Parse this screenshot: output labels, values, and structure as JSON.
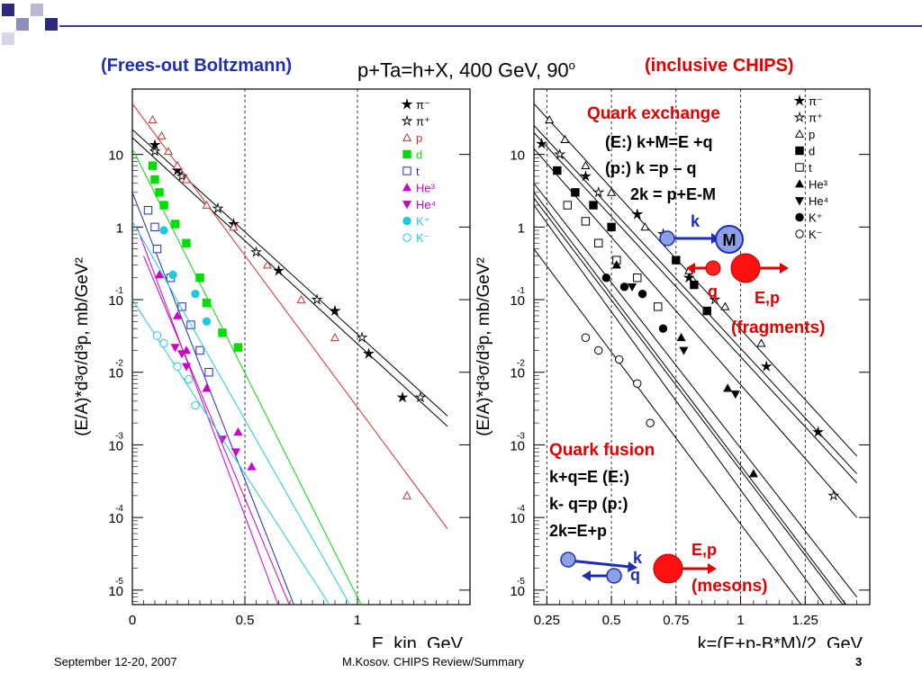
{
  "slide": {
    "title_left": "(Frees-out Boltzmann)",
    "title_mid": "p+Ta=h+X, 400 GeV, 90",
    "title_mid_sup": "o",
    "title_right": "(inclusive CHIPS)",
    "footer_date": "September 12-20, 2007",
    "footer_center": "M.Kosov. CHIPS Review/Summary",
    "page": "3",
    "colors": {
      "accent_blue": "#1f2fb4",
      "accent_red": "#e00000",
      "deco": "#3a3a8c"
    }
  },
  "chart_data": [
    {
      "type": "scatter",
      "ylabel": "(E/A)*d³σ/d³p, mb/GeV²",
      "xlabel": "E_kin, GeV",
      "xlim": [
        0,
        1.5
      ],
      "ylim_log10": [
        -5.2,
        1.9
      ],
      "x_ticks": [
        {
          "v": 0,
          "t": "0"
        },
        {
          "v": 0.5,
          "t": "0.5"
        },
        {
          "v": 1,
          "t": "1"
        }
      ],
      "y_ticks": [
        {
          "e": 1,
          "base": "10",
          "exp": ""
        },
        {
          "e": 0,
          "base": "1",
          "exp": ""
        },
        {
          "e": -1,
          "base": "10",
          "exp": "-1"
        },
        {
          "e": -2,
          "base": "10",
          "exp": "-2"
        },
        {
          "e": -3,
          "base": "10",
          "exp": "-3"
        },
        {
          "e": -4,
          "base": "10",
          "exp": "-4"
        },
        {
          "e": -5,
          "base": "10",
          "exp": "-5"
        }
      ],
      "scale": "log-y",
      "grid": "dashed vertical at 0.5 and 1",
      "legend_position": "top-right",
      "series": [
        {
          "name": "π⁻",
          "marker": "star-filled",
          "color": "#000000",
          "points": [
            [
              0.1,
              13.5
            ],
            [
              0.2,
              6
            ],
            [
              0.45,
              1.1
            ],
            [
              0.65,
              0.25
            ],
            [
              0.9,
              0.07
            ],
            [
              1.05,
              0.018
            ],
            [
              1.2,
              0.0045
            ]
          ],
          "fit": [
            [
              0,
              22
            ],
            [
              1.4,
              0.0025
            ]
          ]
        },
        {
          "name": "π⁺",
          "marker": "star-open",
          "color": "#000000",
          "points": [
            [
              0.1,
              11
            ],
            [
              0.22,
              5
            ],
            [
              0.38,
              1.8
            ],
            [
              0.55,
              0.45
            ],
            [
              0.82,
              0.1
            ],
            [
              1.02,
              0.03
            ],
            [
              1.28,
              0.0045
            ]
          ],
          "fit": [
            [
              0,
              17
            ],
            [
              1.4,
              0.0018
            ]
          ]
        },
        {
          "name": "p",
          "marker": "triangle-open",
          "color": "#c83232",
          "points": [
            [
              0.09,
              30
            ],
            [
              0.13,
              18
            ],
            [
              0.16,
              11
            ],
            [
              0.2,
              7
            ],
            [
              0.24,
              4.5
            ],
            [
              0.33,
              2
            ],
            [
              0.45,
              1
            ],
            [
              0.6,
              0.3
            ],
            [
              0.75,
              0.1
            ],
            [
              0.9,
              0.03
            ],
            [
              1.22,
              0.0002
            ]
          ],
          "fit": [
            [
              0,
              50
            ],
            [
              1.4,
              7e-05
            ]
          ]
        },
        {
          "name": "d",
          "marker": "square-filled",
          "color": "#00dd00",
          "points": [
            [
              0.09,
              7
            ],
            [
              0.1,
              4.5
            ],
            [
              0.12,
              3
            ],
            [
              0.14,
              2
            ],
            [
              0.19,
              1.1
            ],
            [
              0.24,
              0.6
            ],
            [
              0.3,
              0.2
            ],
            [
              0.33,
              0.09
            ],
            [
              0.4,
              0.035
            ],
            [
              0.47,
              0.022
            ]
          ],
          "fit": [
            [
              0,
              12
            ],
            [
              1.02,
              6e-06
            ]
          ]
        },
        {
          "name": "t",
          "marker": "square-open",
          "color": "#1f2fb4",
          "points": [
            [
              0.07,
              1.7
            ],
            [
              0.1,
              1
            ],
            [
              0.11,
              0.5
            ],
            [
              0.17,
              0.2
            ],
            [
              0.22,
              0.08
            ],
            [
              0.26,
              0.045
            ],
            [
              0.3,
              0.02
            ],
            [
              0.34,
              0.01
            ]
          ],
          "fit": [
            [
              0,
              3
            ],
            [
              0.72,
              6e-06
            ]
          ]
        },
        {
          "name": "He³",
          "marker": "triangle-filled",
          "color": "#cc00cc",
          "points": [
            [
              0.12,
              0.22
            ],
            [
              0.2,
              0.06
            ],
            [
              0.24,
              0.02
            ],
            [
              0.33,
              0.006
            ],
            [
              0.47,
              0.0015
            ],
            [
              0.53,
              0.0005
            ]
          ],
          "fit": [
            [
              0.02,
              1
            ],
            [
              0.65,
              6e-06
            ]
          ]
        },
        {
          "name": "He⁴",
          "marker": "triangle-down-filled",
          "color": "#cc00cc",
          "points": [
            [
              0.19,
              0.022
            ],
            [
              0.22,
              0.018
            ],
            [
              0.24,
              0.012
            ],
            [
              0.4,
              0.0012
            ],
            [
              0.46,
              0.0008
            ]
          ],
          "fit": [
            [
              0.05,
              0.4
            ],
            [
              0.7,
              6e-06
            ]
          ]
        },
        {
          "name": "K⁺",
          "marker": "circle-filled",
          "color": "#22c8dd",
          "points": [
            [
              0.14,
              0.9
            ],
            [
              0.18,
              0.22
            ],
            [
              0.28,
              0.12
            ],
            [
              0.33,
              0.05
            ]
          ],
          "fit": [
            [
              0,
              1.2
            ],
            [
              0.97,
              6e-06
            ]
          ]
        },
        {
          "name": "K⁻",
          "marker": "circle-open",
          "color": "#22c8dd",
          "points": [
            [
              0.11,
              0.032
            ],
            [
              0.14,
              0.025
            ],
            [
              0.2,
              0.012
            ],
            [
              0.25,
              0.008
            ],
            [
              0.28,
              0.0035
            ]
          ],
          "fit": [
            [
              0,
              0.1
            ],
            [
              0.88,
              6e-06
            ]
          ]
        }
      ]
    },
    {
      "type": "scatter",
      "ylabel": "(E/A)*d³σ/d³p, mb/GeV²",
      "xlabel": "k=(E+p-B*M)/2, GeV",
      "xlim": [
        0.2,
        1.5
      ],
      "ylim_log10": [
        -5.2,
        1.9
      ],
      "x_ticks": [
        {
          "v": 0.25,
          "t": "0.25"
        },
        {
          "v": 0.5,
          "t": "0.5"
        },
        {
          "v": 0.75,
          "t": "0.75"
        },
        {
          "v": 1,
          "t": "1"
        },
        {
          "v": 1.25,
          "t": "1.25"
        }
      ],
      "y_ticks": [
        {
          "e": 1,
          "base": "10",
          "exp": ""
        },
        {
          "e": 0,
          "base": "1",
          "exp": ""
        },
        {
          "e": -1,
          "base": "10",
          "exp": "-1"
        },
        {
          "e": -2,
          "base": "10",
          "exp": "-2"
        },
        {
          "e": -3,
          "base": "10",
          "exp": "-3"
        },
        {
          "e": -4,
          "base": "10",
          "exp": "-4"
        },
        {
          "e": -5,
          "base": "10",
          "exp": "-5"
        }
      ],
      "scale": "log-y",
      "grid": "dashed vertical at 0.25, 0.5, 0.75, 1",
      "legend_position": "top-right",
      "series": [
        {
          "name": "π⁻",
          "marker": "star-filled",
          "color": "#000000",
          "points": [
            [
              0.23,
              14
            ],
            [
              0.4,
              5
            ],
            [
              0.6,
              1.5
            ],
            [
              0.8,
              0.2
            ],
            [
              1.1,
              0.012
            ],
            [
              1.3,
              0.0015
            ]
          ],
          "fit": [
            [
              0.2,
              25
            ],
            [
              1.45,
              0.0004
            ]
          ]
        },
        {
          "name": "π⁺",
          "marker": "star-open",
          "color": "#000000",
          "points": [
            [
              0.3,
              10
            ],
            [
              0.45,
              3
            ],
            [
              0.7,
              0.8
            ],
            [
              0.9,
              0.1
            ],
            [
              1.36,
              0.0002
            ]
          ],
          "fit": [
            [
              0.2,
              20
            ],
            [
              1.45,
              0.0003
            ]
          ]
        },
        {
          "name": "p",
          "marker": "triangle-open",
          "color": "#000000",
          "points": [
            [
              0.26,
              30
            ],
            [
              0.32,
              16
            ],
            [
              0.4,
              7
            ],
            [
              0.5,
              3
            ],
            [
              0.63,
              1
            ],
            [
              0.8,
              0.25
            ],
            [
              0.94,
              0.08
            ],
            [
              1.08,
              0.025
            ]
          ],
          "fit": [
            [
              0.2,
              50
            ],
            [
              1.45,
              0.0007
            ]
          ]
        },
        {
          "name": "d",
          "marker": "square-filled",
          "color": "#000000",
          "points": [
            [
              0.29,
              6
            ],
            [
              0.36,
              3
            ],
            [
              0.43,
              2
            ],
            [
              0.5,
              1
            ],
            [
              0.75,
              0.35
            ],
            [
              0.82,
              0.16
            ],
            [
              0.87,
              0.07
            ]
          ],
          "fit": [
            [
              0.2,
              12
            ],
            [
              1.45,
              0.0001
            ]
          ]
        },
        {
          "name": "t",
          "marker": "square-open",
          "color": "#000000",
          "points": [
            [
              0.33,
              2
            ],
            [
              0.4,
              1.2
            ],
            [
              0.45,
              0.6
            ],
            [
              0.52,
              0.35
            ],
            [
              0.6,
              0.2
            ],
            [
              0.68,
              0.08
            ]
          ],
          "fit": [
            [
              0.2,
              4
            ],
            [
              1.45,
              8e-06
            ]
          ]
        },
        {
          "name": "He³",
          "marker": "triangle-filled",
          "color": "#000000",
          "points": [
            [
              0.52,
              0.3
            ],
            [
              0.77,
              0.03
            ],
            [
              0.95,
              0.006
            ],
            [
              1.05,
              0.0004
            ]
          ],
          "fit": [
            [
              0.2,
              3
            ],
            [
              1.45,
              4e-06
            ]
          ]
        },
        {
          "name": "He⁴",
          "marker": "triangle-down-filled",
          "color": "#000000",
          "points": [
            [
              0.58,
              0.15
            ],
            [
              0.78,
              0.02
            ],
            [
              0.98,
              0.005
            ]
          ],
          "fit": [
            [
              0.2,
              2.5
            ],
            [
              1.45,
              3.5e-06
            ]
          ]
        },
        {
          "name": "K⁺",
          "marker": "circle-filled",
          "color": "#000000",
          "points": [
            [
              0.48,
              0.2
            ],
            [
              0.55,
              0.15
            ],
            [
              0.62,
              0.12
            ],
            [
              0.7,
              0.04
            ]
          ],
          "fit": [
            [
              0.2,
              2
            ],
            [
              1.45,
              1.5e-06
            ]
          ]
        },
        {
          "name": "K⁻",
          "marker": "circle-open",
          "color": "#000000",
          "points": [
            [
              0.4,
              0.03
            ],
            [
              0.45,
              0.02
            ],
            [
              0.53,
              0.015
            ],
            [
              0.6,
              0.007
            ],
            [
              0.65,
              0.002
            ]
          ],
          "fit": [
            [
              0.2,
              0.5
            ],
            [
              1.45,
              6e-07
            ]
          ]
        }
      ],
      "annotations": {
        "exchange_title": "Quark exchange",
        "exchange_eq1": "(E:) k+M=E +q",
        "exchange_eq2": "(p:) k =p – q",
        "exchange_eq3": "2k = p+E-M",
        "label_k": "k",
        "label_M": "M",
        "label_q": "q",
        "label_Ep": "E,p",
        "fragments": "(fragments)",
        "fusion_title": "Quark fusion",
        "fusion_eq1": "k+q=E (E:)",
        "fusion_eq2": "k- q=p (p:)",
        "fusion_eq3": "2k=E+p",
        "label2_Ep": "E,p",
        "label2_k": "k",
        "label2_q": "q",
        "mesons": "(mesons)"
      }
    }
  ]
}
